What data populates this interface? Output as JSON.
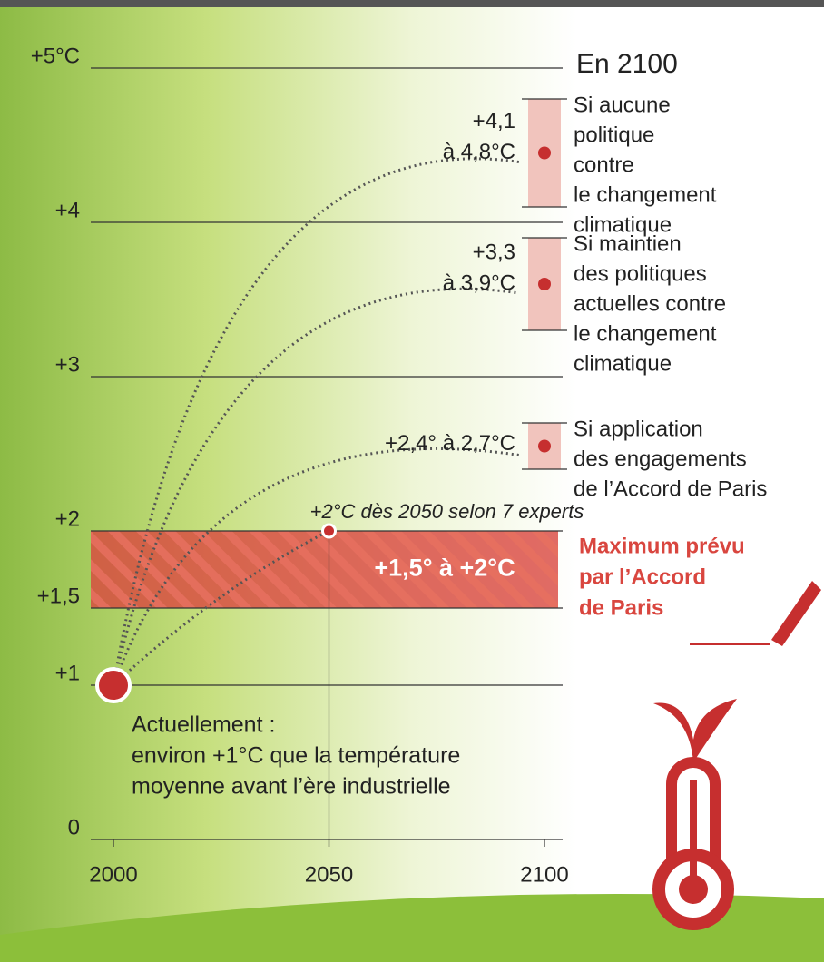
{
  "chart_data": {
    "type": "range",
    "xlim": [
      2000,
      2100
    ],
    "xticks": [
      2000,
      2050,
      2100
    ],
    "ylim": [
      0,
      5
    ],
    "yticks": [
      0,
      {
        "value": 1,
        "label": "+1"
      },
      {
        "value": 1.5,
        "label": "+1,5"
      },
      {
        "value": 2,
        "label": "+2"
      },
      {
        "value": 3,
        "label": "+3"
      },
      {
        "value": 4,
        "label": "+4"
      },
      {
        "value": 5,
        "label": "+5°C"
      }
    ],
    "current": {
      "x": 2000,
      "y": 1,
      "label_lines": [
        "Actuellement :",
        "environ +1°C que la température",
        "moyenne avant l’ère industrielle"
      ]
    },
    "milestone": {
      "x": 2050,
      "y": 2,
      "label": "+2°C dès 2050 selon 7 experts"
    },
    "target_band": {
      "low": 1.5,
      "high": 2,
      "label": "+1,5° à +2°C",
      "note_lines": [
        "Maximum prévu",
        "par l’Accord",
        "de Paris"
      ],
      "color": "#d9463f"
    },
    "scenarios_title": "En 2100",
    "scenario_x": 2100,
    "scenarios": [
      {
        "low": 4.1,
        "high": 4.8,
        "range_label_lines": [
          "+4,1",
          "à 4,8°C"
        ],
        "description_lines": [
          "Si aucune",
          "politique",
          "contre",
          "le changement",
          "climatique"
        ]
      },
      {
        "low": 3.3,
        "high": 3.9,
        "range_label_lines": [
          "+3,3",
          "à 3,9°C"
        ],
        "description_lines": [
          "Si maintien",
          "des politiques",
          "actuelles contre",
          "le changement",
          "climatique"
        ]
      },
      {
        "low": 2.4,
        "high": 2.7,
        "range_label_lines": [
          "+2,4° à 2,7°C"
        ],
        "description_lines": [
          "Si application",
          "des engagements",
          "de l’Accord de Paris"
        ]
      }
    ]
  }
}
